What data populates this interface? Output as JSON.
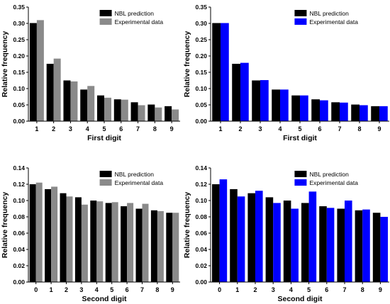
{
  "colors": {
    "prediction": "#000000",
    "experimental_gray": "#8a8a8a",
    "experimental_blue": "#0000ff",
    "axis": "#000000"
  },
  "chart_data": [
    {
      "type": "bar",
      "categories": [
        "1",
        "2",
        "3",
        "4",
        "5",
        "6",
        "7",
        "8",
        "9"
      ],
      "series": [
        {
          "name": "NBL prediction",
          "color": "#000000",
          "values": [
            0.301,
            0.176,
            0.125,
            0.097,
            0.079,
            0.067,
            0.058,
            0.051,
            0.046
          ]
        },
        {
          "name": "Experimental data",
          "color": "#8a8a8a",
          "values": [
            0.31,
            0.192,
            0.122,
            0.108,
            0.072,
            0.066,
            0.049,
            0.042,
            0.036
          ]
        }
      ],
      "xlabel": "First digit",
      "ylabel": "Relative frequency",
      "ylim": [
        0,
        0.35
      ],
      "yticks": [
        "0.00",
        "0.05",
        "0.10",
        "0.15",
        "0.20",
        "0.25",
        "0.30",
        "0.35"
      ],
      "legend": "top-right",
      "grid": false
    },
    {
      "type": "bar",
      "categories": [
        "1",
        "2",
        "3",
        "4",
        "5",
        "6",
        "7",
        "8",
        "9"
      ],
      "series": [
        {
          "name": "NBL prediction",
          "color": "#000000",
          "values": [
            0.301,
            0.176,
            0.125,
            0.097,
            0.079,
            0.067,
            0.058,
            0.051,
            0.046
          ]
        },
        {
          "name": "Experimental data",
          "color": "#0000ff",
          "values": [
            0.301,
            0.179,
            0.126,
            0.097,
            0.079,
            0.064,
            0.057,
            0.049,
            0.046
          ]
        }
      ],
      "xlabel": "First digit",
      "ylabel": "Relative frequency",
      "ylim": [
        0,
        0.35
      ],
      "yticks": [
        "0.00",
        "0.05",
        "0.10",
        "0.15",
        "0.20",
        "0.25",
        "0.30",
        "0.35"
      ],
      "legend": "top-right",
      "grid": false
    },
    {
      "type": "bar",
      "categories": [
        "0",
        "1",
        "2",
        "3",
        "4",
        "5",
        "6",
        "7",
        "8",
        "9"
      ],
      "series": [
        {
          "name": "NBL prediction",
          "color": "#000000",
          "values": [
            0.12,
            0.114,
            0.109,
            0.104,
            0.1,
            0.097,
            0.093,
            0.09,
            0.088,
            0.085
          ]
        },
        {
          "name": "Experimental data",
          "color": "#8a8a8a",
          "values": [
            0.122,
            0.117,
            0.105,
            0.095,
            0.099,
            0.098,
            0.097,
            0.096,
            0.087,
            0.085
          ]
        }
      ],
      "xlabel": "Second digit",
      "ylabel": "Relative frequency",
      "ylim": [
        0,
        0.14
      ],
      "yticks": [
        "0.00",
        "0.02",
        "0.04",
        "0.06",
        "0.08",
        "0.10",
        "0.12",
        "0.14"
      ],
      "legend": "top-right",
      "grid": false
    },
    {
      "type": "bar",
      "categories": [
        "0",
        "1",
        "2",
        "3",
        "4",
        "5",
        "6",
        "7",
        "8",
        "9"
      ],
      "series": [
        {
          "name": "NBL prediction",
          "color": "#000000",
          "values": [
            0.12,
            0.114,
            0.109,
            0.104,
            0.1,
            0.097,
            0.093,
            0.09,
            0.088,
            0.085
          ]
        },
        {
          "name": "Experimental data",
          "color": "#0000ff",
          "values": [
            0.126,
            0.105,
            0.112,
            0.097,
            0.09,
            0.111,
            0.091,
            0.1,
            0.089,
            0.08
          ]
        }
      ],
      "xlabel": "Second digit",
      "ylabel": "Relative frequency",
      "ylim": [
        0,
        0.14
      ],
      "yticks": [
        "0.00",
        "0.02",
        "0.04",
        "0.06",
        "0.08",
        "0.10",
        "0.12",
        "0.14"
      ],
      "legend": "top-right",
      "grid": false
    }
  ]
}
